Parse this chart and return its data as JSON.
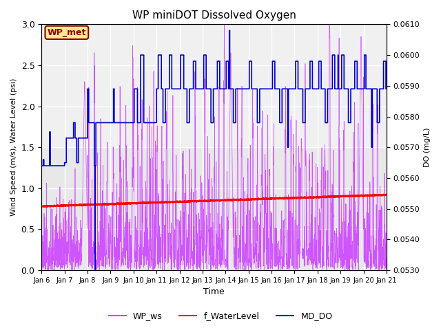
{
  "title": "WP miniDOT Dissolved Oxygen",
  "xlabel": "Time",
  "ylabel_left": "Wind Speed (m/s), Water Level (psi)",
  "ylabel_right": "DO (mg/L)",
  "x_tick_labels": [
    "Jan 6",
    "Jan 7",
    "Jan 8",
    "Jan 9",
    "Jan 10",
    "Jan 11",
    "Jan 12",
    "Jan 13",
    "Jan 14",
    "Jan 15",
    "Jan 16",
    "Jan 17",
    "Jan 18",
    "Jan 19",
    "Jan 20",
    "Jan 21"
  ],
  "wp_met_label": "WP_met",
  "wp_met_fgcolor": "#8B0000",
  "wp_met_bgcolor": "#FFEE88",
  "legend_labels": [
    "WP_ws",
    "f_WaterLevel",
    "MD_DO"
  ],
  "wp_ws_color": "#CC44FF",
  "f_water_color": "#FF0000",
  "md_do_color": "#0000CC",
  "bg_color": "#E8E8E8",
  "bg_light_color": "#F0F0F0",
  "grid_color": "white",
  "ylim_left": [
    0.0,
    3.0
  ],
  "ylim_right": [
    0.053,
    0.061
  ]
}
